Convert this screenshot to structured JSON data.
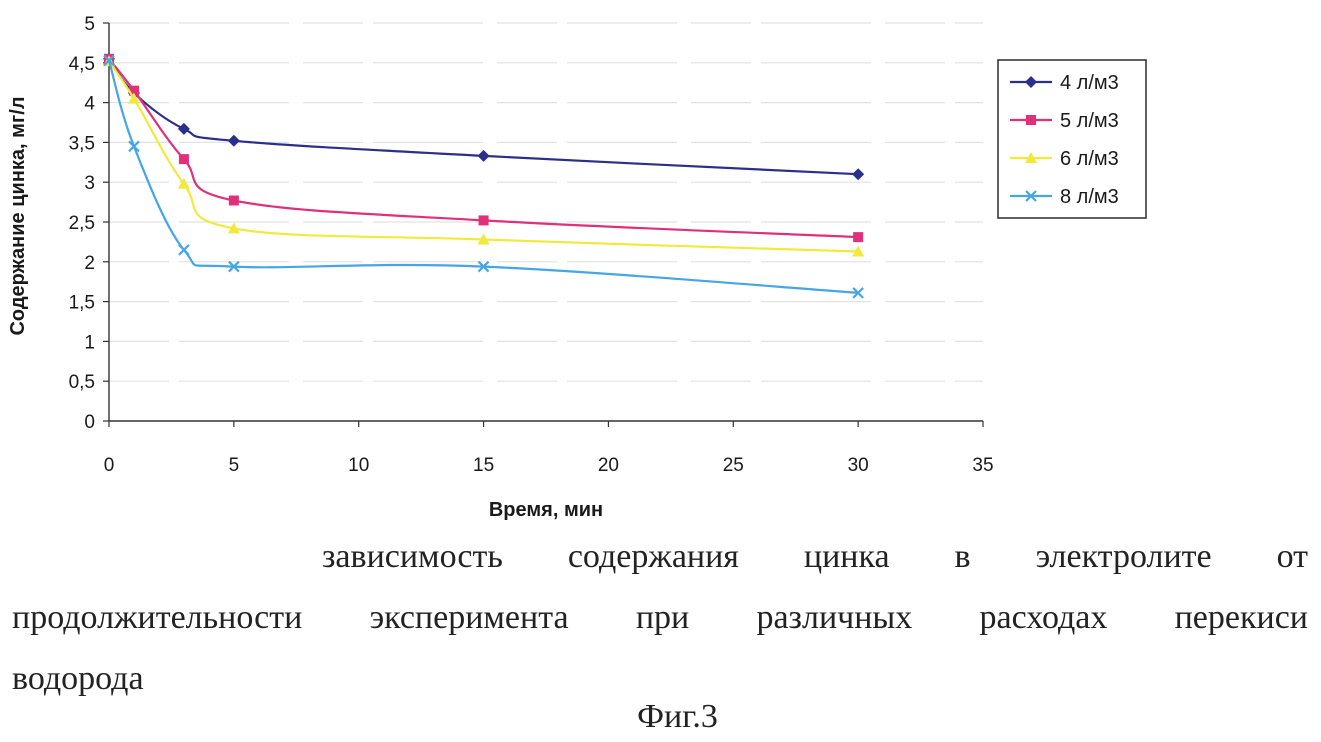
{
  "chart_data": {
    "type": "line",
    "title": "",
    "xlabel": "Время, мин",
    "ylabel": "Содержание цинка, мг/л",
    "xlim": [
      0,
      35
    ],
    "ylim": [
      0,
      5
    ],
    "x_ticks": [
      "0",
      "5",
      "10",
      "15",
      "20",
      "25",
      "30",
      "35"
    ],
    "y_ticks": [
      "0",
      "0,5",
      "1",
      "1,5",
      "2",
      "2,5",
      "3",
      "3,5",
      "4",
      "4,5",
      "5"
    ],
    "grid": true,
    "legend_position": "right",
    "x": [
      0,
      1,
      3,
      5,
      15,
      30
    ],
    "series": [
      {
        "name": "4 л/м3",
        "values": [
          4.55,
          4.12,
          3.67,
          3.52,
          3.33,
          3.1
        ],
        "color": "#2b2f8c",
        "marker": "diamond"
      },
      {
        "name": "5 л/м3",
        "values": [
          4.55,
          4.15,
          3.29,
          2.77,
          2.52,
          2.31
        ],
        "color": "#e0307a",
        "marker": "square"
      },
      {
        "name": "6 л/м3",
        "values": [
          4.52,
          4.05,
          2.98,
          2.42,
          2.28,
          2.13
        ],
        "color": "#f1ea3c",
        "marker": "triangle"
      },
      {
        "name": "8 л/м3",
        "values": [
          4.53,
          3.45,
          2.15,
          1.94,
          1.94,
          1.61
        ],
        "color": "#45a6e6",
        "marker": "x"
      }
    ]
  },
  "caption": {
    "line1": "зависимость содержания цинка в электролите от",
    "line2": "продолжительности эксперимента при различных расходах перекиси",
    "line3": "водорода"
  },
  "figure_label": "Фиг.3"
}
